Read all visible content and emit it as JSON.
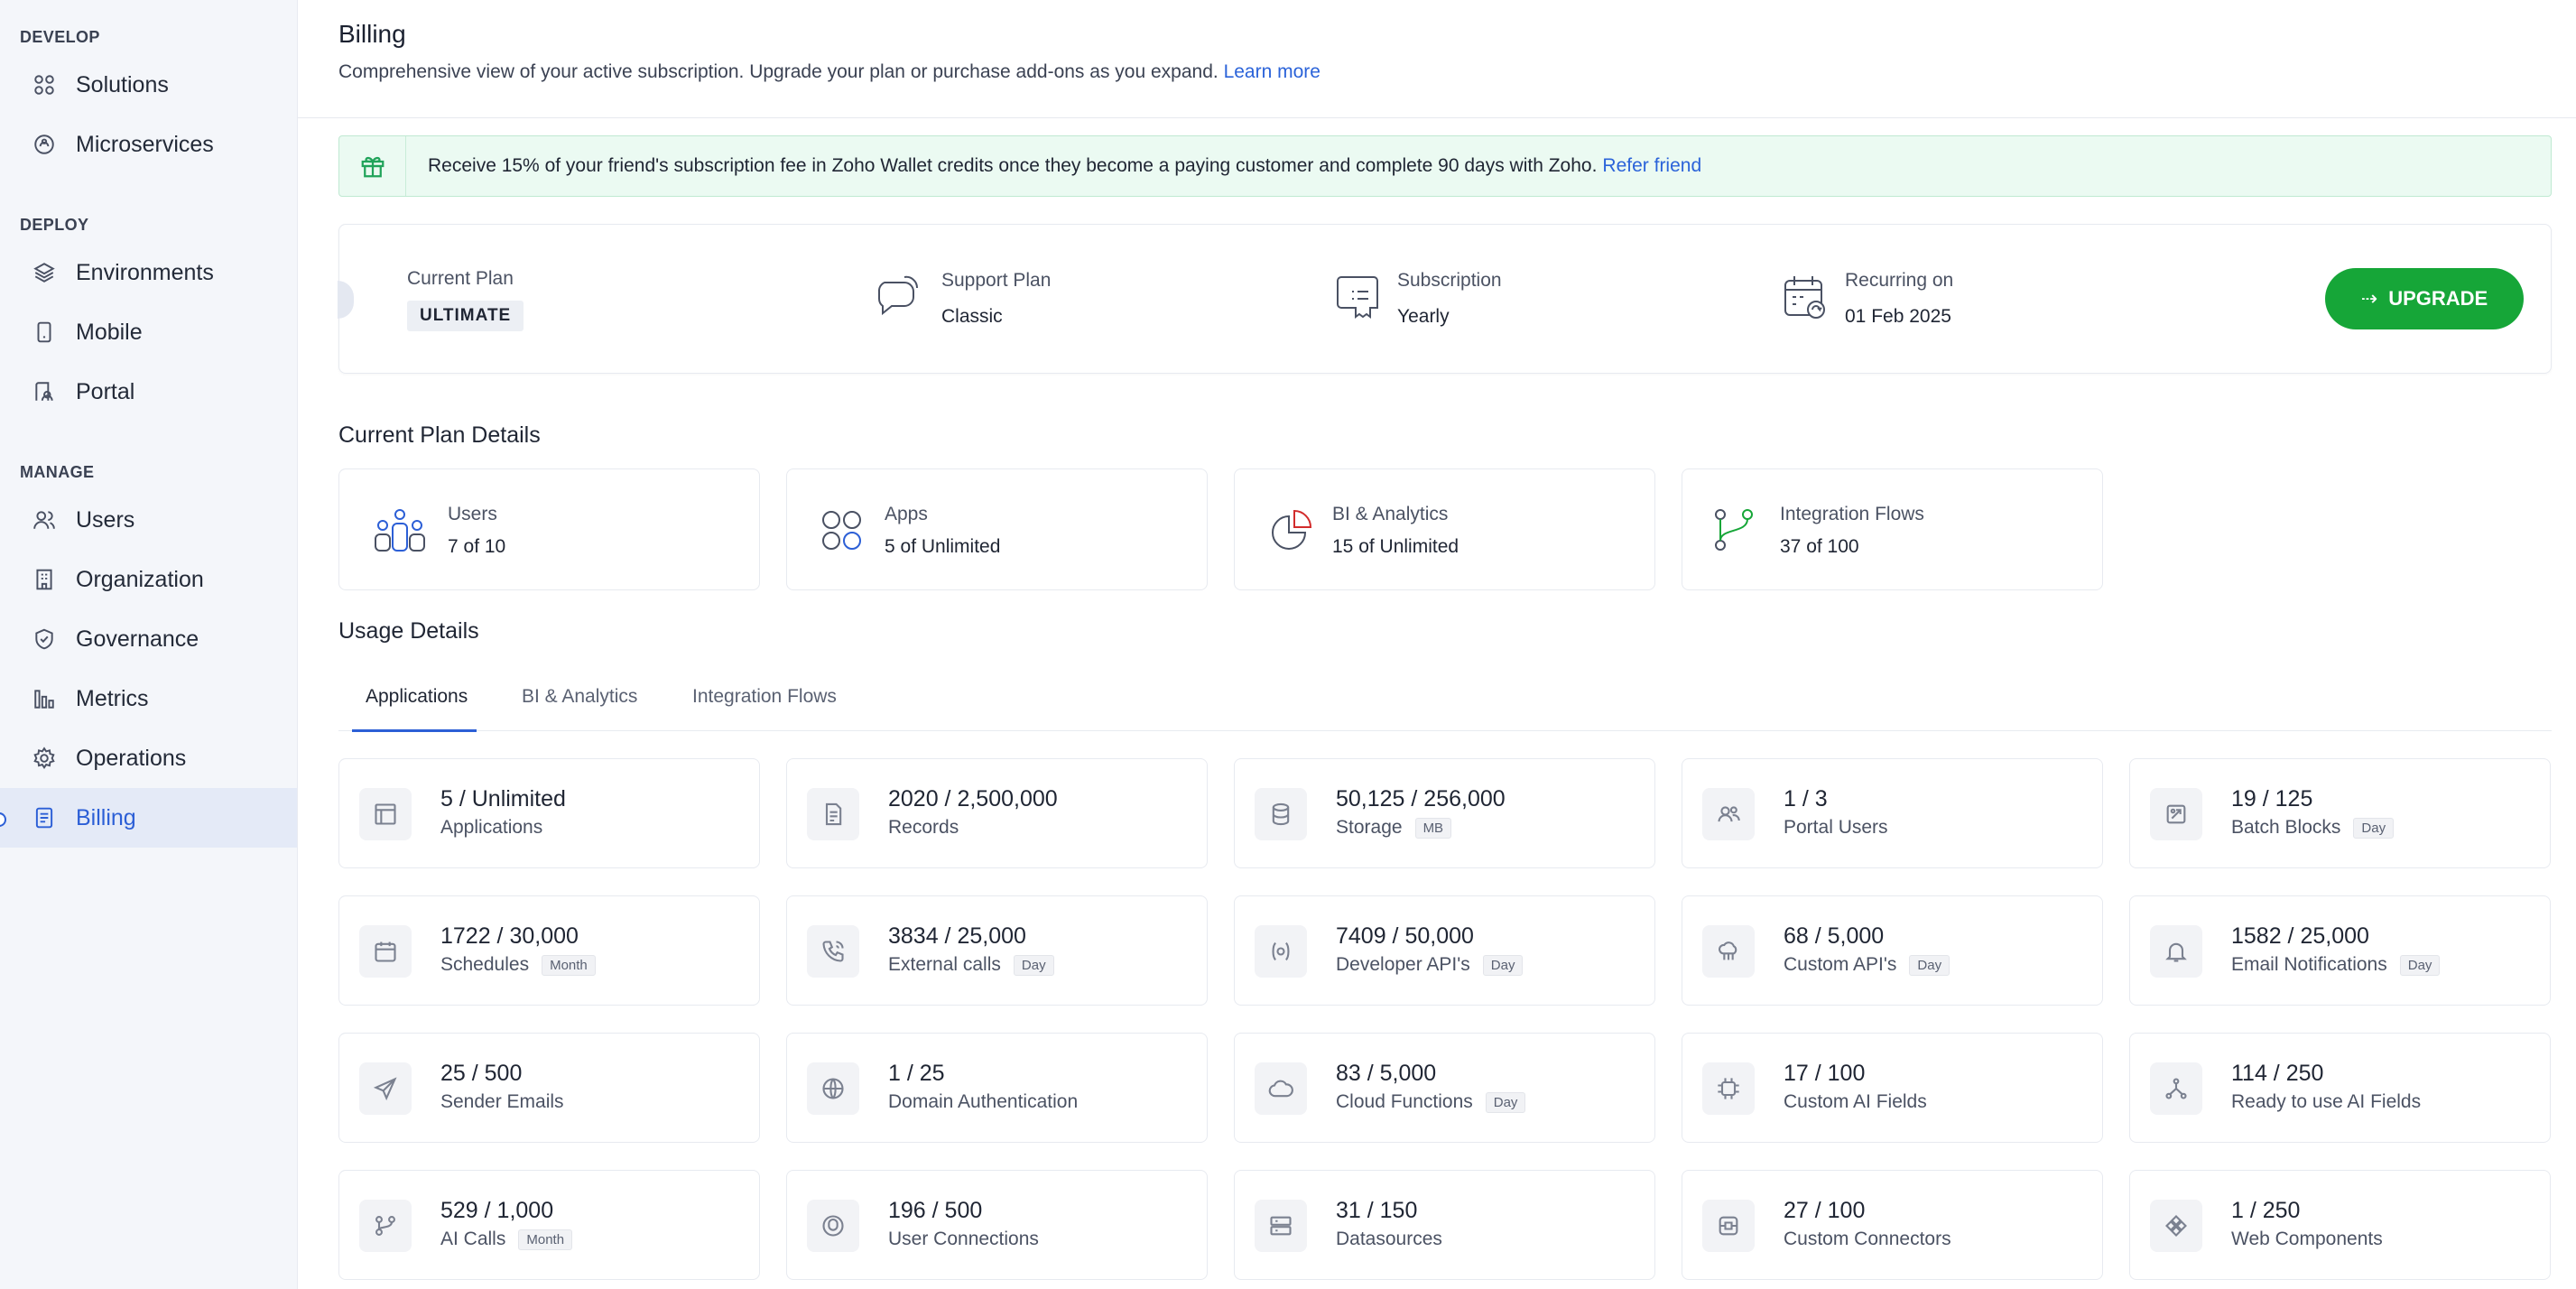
{
  "sidebar": {
    "sections": [
      {
        "title": "DEVELOP",
        "items": [
          {
            "label": "Solutions",
            "icon": "grid-icon"
          },
          {
            "label": "Microservices",
            "icon": "microservices-icon"
          }
        ]
      },
      {
        "title": "DEPLOY",
        "items": [
          {
            "label": "Environments",
            "icon": "layers-icon"
          },
          {
            "label": "Mobile",
            "icon": "mobile-icon"
          },
          {
            "label": "Portal",
            "icon": "portal-icon"
          }
        ]
      },
      {
        "title": "MANAGE",
        "items": [
          {
            "label": "Users",
            "icon": "users-icon"
          },
          {
            "label": "Organization",
            "icon": "building-icon"
          },
          {
            "label": "Governance",
            "icon": "shield-check-icon"
          },
          {
            "label": "Metrics",
            "icon": "bar-chart-icon"
          },
          {
            "label": "Operations",
            "icon": "gear-icon"
          },
          {
            "label": "Billing",
            "icon": "billing-icon",
            "active": true
          }
        ]
      }
    ]
  },
  "header": {
    "title": "Billing",
    "subtitle": "Comprehensive view of your active subscription. Upgrade your plan or purchase add-ons as you expand.",
    "learn_more": "Learn more"
  },
  "referral": {
    "text": "Receive 15% of your friend's subscription fee in Zoho Wallet credits once they become a paying customer and complete 90 days with Zoho.",
    "link": "Refer friend",
    "icon": "gift-icon"
  },
  "plan": {
    "current_plan_label": "Current Plan",
    "current_plan_value": "ULTIMATE",
    "support_label": "Support Plan",
    "support_value": "Classic",
    "subscription_label": "Subscription",
    "subscription_value": "Yearly",
    "recurring_label": "Recurring on",
    "recurring_value": "01 Feb 2025",
    "upgrade_arrow": "⇢",
    "upgrade_label": "UPGRADE",
    "accent_color": "#16a638"
  },
  "plan_details": {
    "title": "Current Plan Details",
    "cards": [
      {
        "label": "Users",
        "value": "7 of 10",
        "icon": "users-group-icon"
      },
      {
        "label": "Apps",
        "value": "5 of Unlimited",
        "icon": "apps-icon"
      },
      {
        "label": "BI & Analytics",
        "value": "15 of Unlimited",
        "icon": "pie-chart-icon"
      },
      {
        "label": "Integration Flows",
        "value": "37 of 100",
        "icon": "flow-icon"
      }
    ]
  },
  "usage": {
    "title": "Usage Details",
    "tabs": [
      "Applications",
      "BI & Analytics",
      "Integration Flows"
    ],
    "cards": [
      {
        "value": "5 / Unlimited",
        "label": "Applications",
        "unit": "",
        "icon": "layout-icon"
      },
      {
        "value": "2020 / 2,500,000",
        "label": "Records",
        "unit": "",
        "icon": "document-icon"
      },
      {
        "value": "50,125 / 256,000",
        "label": "Storage",
        "unit": "MB",
        "icon": "database-icon"
      },
      {
        "value": "1 / 3",
        "label": "Portal Users",
        "unit": "",
        "icon": "portal-users-icon"
      },
      {
        "value": "19 / 125",
        "label": "Batch Blocks",
        "unit": "Day",
        "icon": "batch-icon"
      },
      {
        "value": "1722 / 30,000",
        "label": "Schedules",
        "unit": "Month",
        "icon": "calendar-icon"
      },
      {
        "value": "3834 / 25,000",
        "label": "External calls",
        "unit": "Day",
        "icon": "phone-icon"
      },
      {
        "value": "7409 / 50,000",
        "label": "Developer API's",
        "unit": "Day",
        "icon": "api-icon"
      },
      {
        "value": "68 / 5,000",
        "label": "Custom API's",
        "unit": "Day",
        "icon": "cloud-api-icon"
      },
      {
        "value": "1582 / 25,000",
        "label": "Email Notifications",
        "unit": "Day",
        "icon": "bell-icon"
      },
      {
        "value": "25 / 500",
        "label": "Sender Emails",
        "unit": "",
        "icon": "send-icon"
      },
      {
        "value": "1 / 25",
        "label": "Domain Authentication",
        "unit": "",
        "icon": "globe-lock-icon"
      },
      {
        "value": "83 / 5,000",
        "label": "Cloud Functions",
        "unit": "Day",
        "icon": "cloud-icon"
      },
      {
        "value": "17 / 100",
        "label": "Custom AI Fields",
        "unit": "",
        "icon": "chip-icon"
      },
      {
        "value": "114 / 250",
        "label": "Ready to use AI Fields",
        "unit": "",
        "icon": "nodes-icon"
      },
      {
        "value": "529 / 1,000",
        "label": "AI Calls",
        "unit": "Month",
        "icon": "branch-icon"
      },
      {
        "value": "196 / 500",
        "label": "User Connections",
        "unit": "",
        "icon": "connection-icon"
      },
      {
        "value": "31 / 150",
        "label": "Datasources",
        "unit": "",
        "icon": "server-icon"
      },
      {
        "value": "27 / 100",
        "label": "Custom Connectors",
        "unit": "",
        "icon": "connector-icon"
      },
      {
        "value": "1 / 250",
        "label": "Web Components",
        "unit": "",
        "icon": "component-icon"
      }
    ]
  }
}
